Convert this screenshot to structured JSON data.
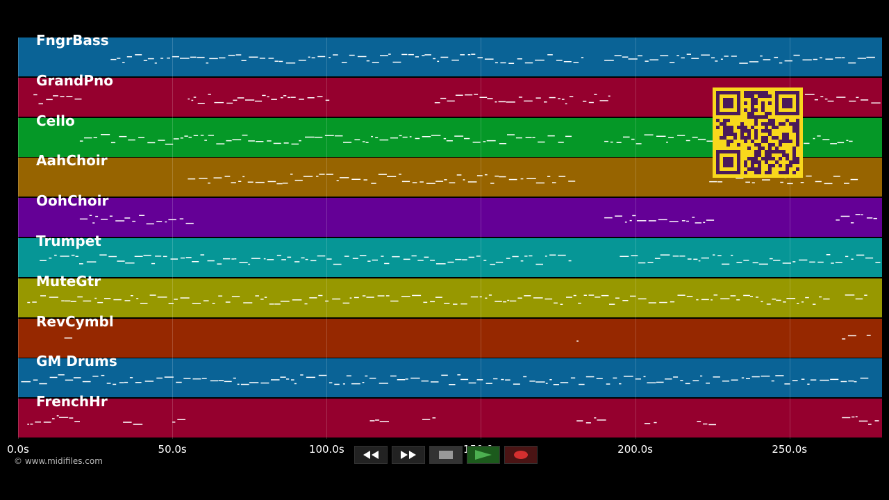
{
  "timeline": {
    "duration_s": 280,
    "ticks": [
      "0.0s",
      "50.0s",
      "100.0s",
      "150.0s",
      "200.0s",
      "250.0s"
    ],
    "tick_values": [
      0,
      50,
      100,
      150,
      200,
      250
    ]
  },
  "tracks": [
    {
      "name": "FngrBass",
      "color": "#0a6396"
    },
    {
      "name": "GrandPno",
      "color": "#95002e"
    },
    {
      "name": "Cello",
      "color": "#059827"
    },
    {
      "name": "AahChoir",
      "color": "#976400"
    },
    {
      "name": "OohChoir",
      "color": "#640096"
    },
    {
      "name": "Trumpet",
      "color": "#069696"
    },
    {
      "name": "MuteGtr",
      "color": "#979800"
    },
    {
      "name": "RevCymbl",
      "color": "#962800"
    },
    {
      "name": "GM Drums",
      "color": "#0a6396"
    },
    {
      "name": "FrenchHr",
      "color": "#95002e"
    }
  ],
  "copyright": "© www.midifiles.com",
  "controls": {
    "rewind_icon": "rewind-icon",
    "forward_icon": "fast-forward-icon",
    "stop_icon": "stop-icon",
    "play_icon": "play-icon",
    "record_icon": "record-icon"
  },
  "colors": {
    "qr_background": "#f8d81c",
    "qr_modules": "#4a1a5a",
    "note": "#ffffff"
  }
}
